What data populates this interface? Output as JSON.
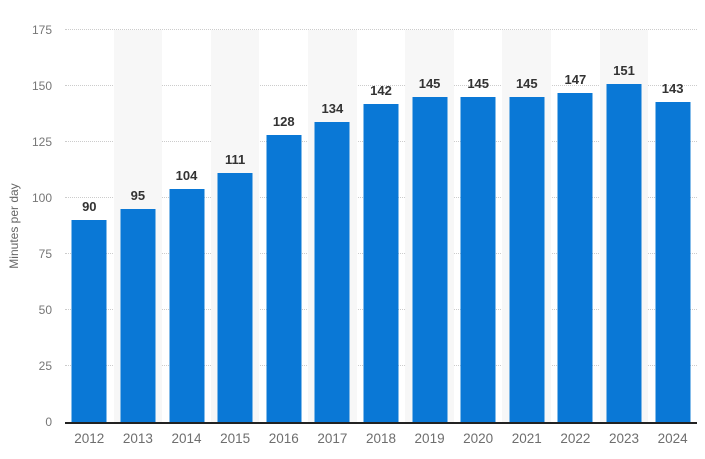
{
  "chart_data": {
    "type": "bar",
    "title": "",
    "xlabel": "",
    "ylabel": "Minutes per day",
    "categories": [
      "2012",
      "2013",
      "2014",
      "2015",
      "2016",
      "2017",
      "2018",
      "2019",
      "2020",
      "2021",
      "2022",
      "2023",
      "2024"
    ],
    "values": [
      90,
      95,
      104,
      111,
      128,
      134,
      142,
      145,
      145,
      145,
      147,
      151,
      143
    ],
    "ylim": [
      0,
      175
    ],
    "yticks": [
      0,
      25,
      50,
      75,
      100,
      125,
      150,
      175
    ],
    "grid": "horizontal-dotted",
    "legend_position": "none",
    "striped_categories": [
      "2013",
      "2015",
      "2017",
      "2019",
      "2021",
      "2023"
    ],
    "colors": {
      "bar": "#0a78d6",
      "column_stripe": "#f7f7f7",
      "gridline": "#cccccc",
      "axis_line": "#222222",
      "tick_label": "#767676",
      "x_tick_label": "#6e6e6e",
      "value_label": "#333333",
      "axis_title": "#666666",
      "background": "#ffffff"
    }
  }
}
